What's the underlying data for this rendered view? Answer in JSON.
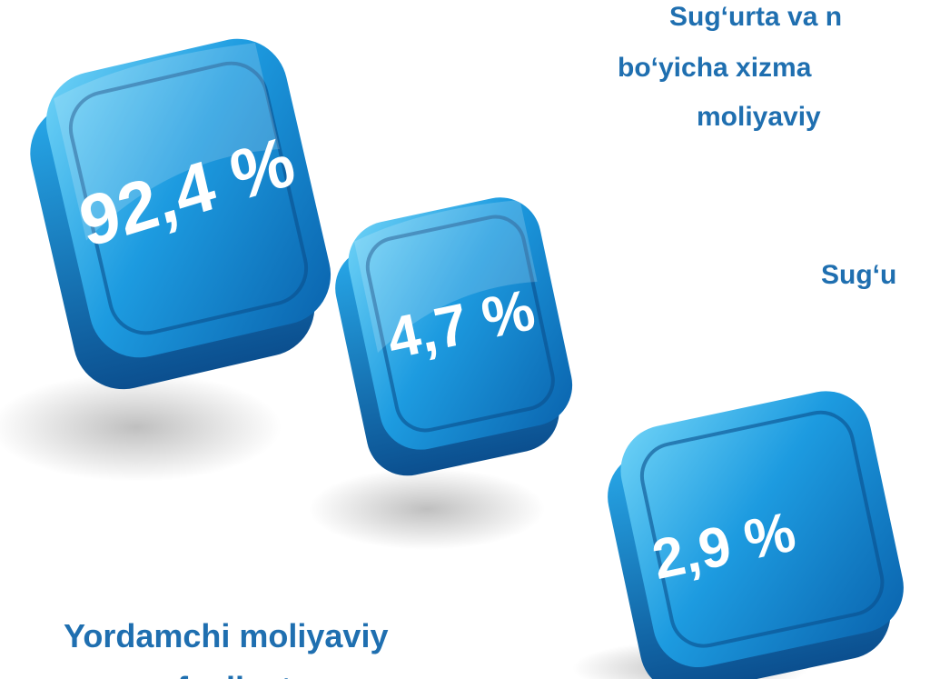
{
  "texts": {
    "top_line1": "Sug‘urta va n",
    "top_line2": "bo‘yicha xizma",
    "top_line3": "moliyaviy",
    "middle_right": "Sug‘u",
    "bottom_line1": "Yordamchi moliyaviy",
    "bottom_line2": "faoliyat"
  },
  "tiles": [
    {
      "label": "92,4 %"
    },
    {
      "label": "4,7 %"
    },
    {
      "label": "2,9 %"
    }
  ]
}
